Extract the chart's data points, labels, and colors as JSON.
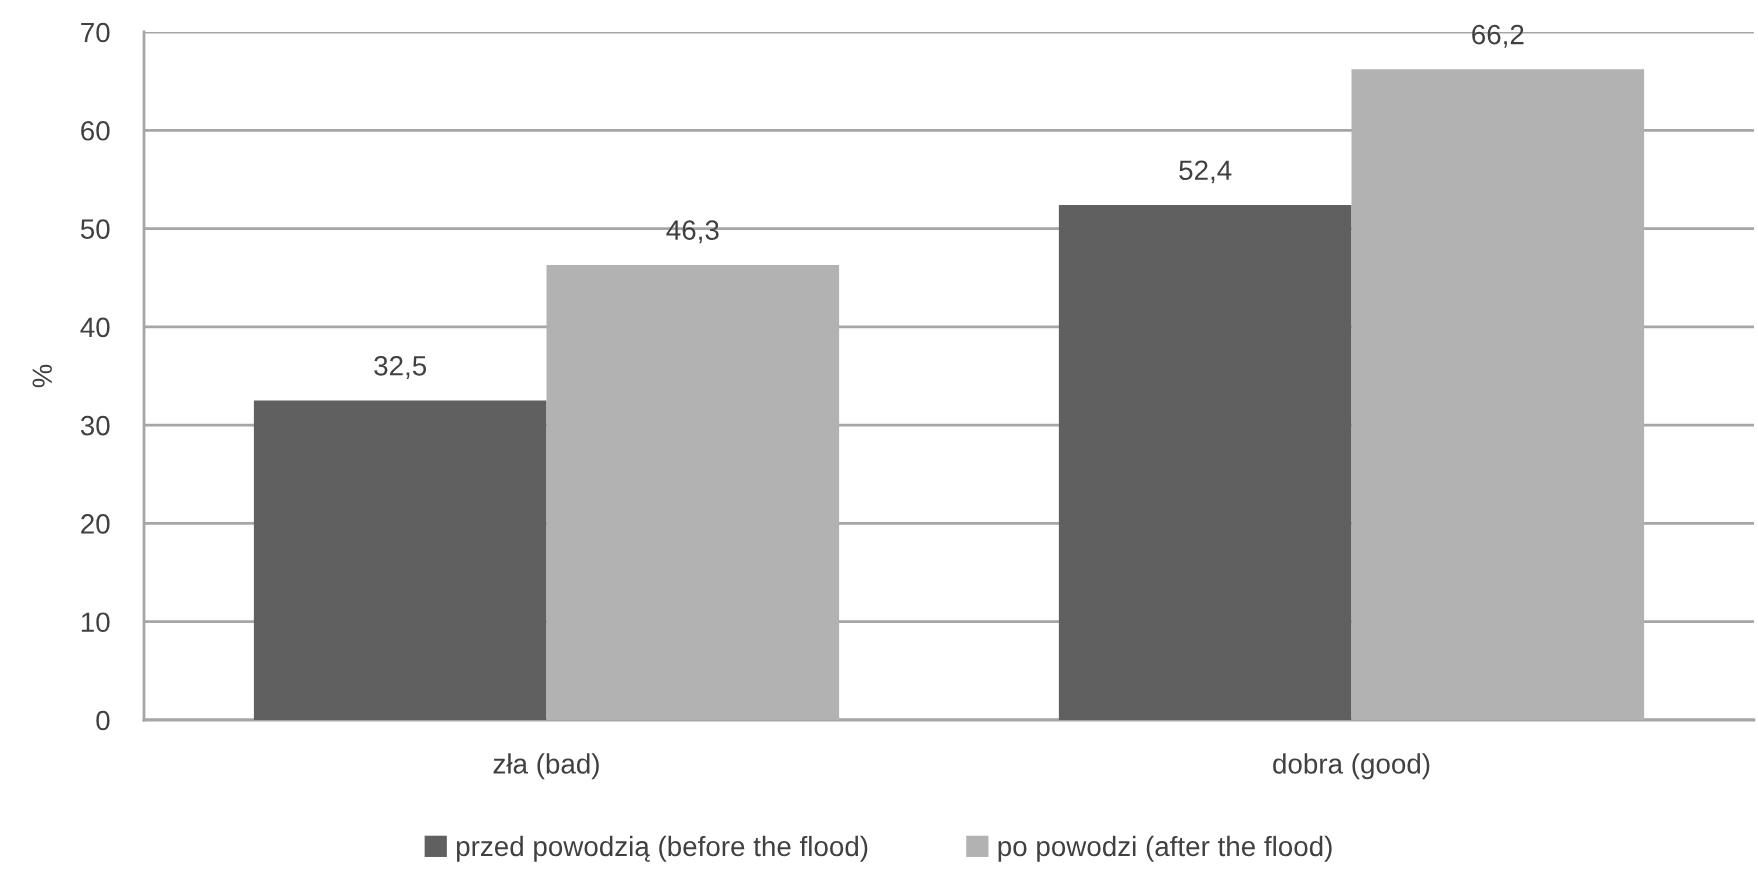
{
  "chart_data": {
    "type": "bar",
    "ylabel": "%",
    "categories": [
      "zła (bad)",
      "dobra (good)"
    ],
    "series": [
      {
        "name": "przed powodzią (before the flood)",
        "color": "#606060",
        "values": [
          32.5,
          52.4
        ],
        "value_labels": [
          "32,5",
          "52,4"
        ]
      },
      {
        "name": "po powodzi (after the flood)",
        "color": "#b2b2b2",
        "values": [
          46.3,
          66.2
        ],
        "value_labels": [
          "46,3",
          "66,2"
        ]
      }
    ],
    "ylim": [
      0,
      70
    ],
    "yticks": [
      0,
      10,
      20,
      30,
      40,
      50,
      60,
      70
    ],
    "grid": "y",
    "legend": "bottom"
  }
}
